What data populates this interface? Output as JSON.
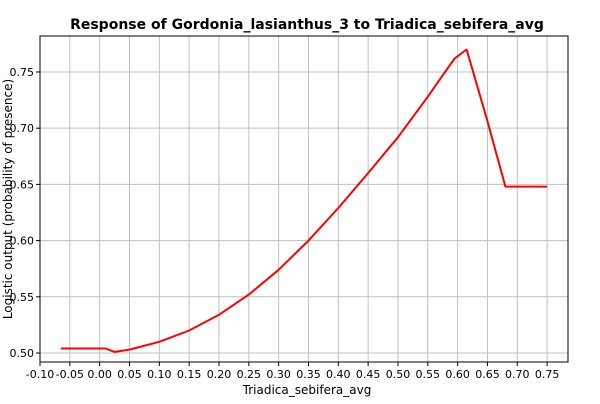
{
  "chart_data": {
    "type": "line",
    "title": "Response of Gordonia_lasianthus_3 to Triadica_sebifera_avg",
    "xlabel": "Triadica_sebifera_avg",
    "ylabel": "Logistic output (probability of presence)",
    "xlim": [
      -0.1,
      0.785
    ],
    "ylim": [
      0.492,
      0.782
    ],
    "xticks": [
      -0.1,
      -0.05,
      0.0,
      0.05,
      0.1,
      0.15,
      0.2,
      0.25,
      0.3,
      0.35,
      0.4,
      0.45,
      0.5,
      0.55,
      0.6,
      0.65,
      0.7,
      0.75
    ],
    "xtick_labels": [
      "-0.10",
      "-0.05",
      "0.00",
      "0.05",
      "0.10",
      "0.15",
      "0.20",
      "0.25",
      "0.30",
      "0.35",
      "0.40",
      "0.45",
      "0.50",
      "0.55",
      "0.60",
      "0.65",
      "0.70",
      "0.75"
    ],
    "yticks": [
      0.5,
      0.55,
      0.6,
      0.65,
      0.7,
      0.75
    ],
    "ytick_labels": [
      "0.50",
      "0.55",
      "0.60",
      "0.65",
      "0.70",
      "0.75"
    ],
    "grid": true,
    "series": [
      {
        "color": "#ff0000",
        "x": [
          -0.065,
          0.0,
          0.01,
          0.025,
          0.05,
          0.1,
          0.15,
          0.2,
          0.25,
          0.3,
          0.35,
          0.4,
          0.45,
          0.5,
          0.55,
          0.575,
          0.595,
          0.605,
          0.615,
          0.625,
          0.65,
          0.68,
          0.75
        ],
        "y": [
          0.504,
          0.504,
          0.504,
          0.501,
          0.503,
          0.51,
          0.52,
          0.534,
          0.552,
          0.574,
          0.6,
          0.629,
          0.66,
          0.692,
          0.728,
          0.747,
          0.762,
          0.766,
          0.77,
          0.752,
          0.706,
          0.648,
          0.648
        ]
      }
    ]
  }
}
